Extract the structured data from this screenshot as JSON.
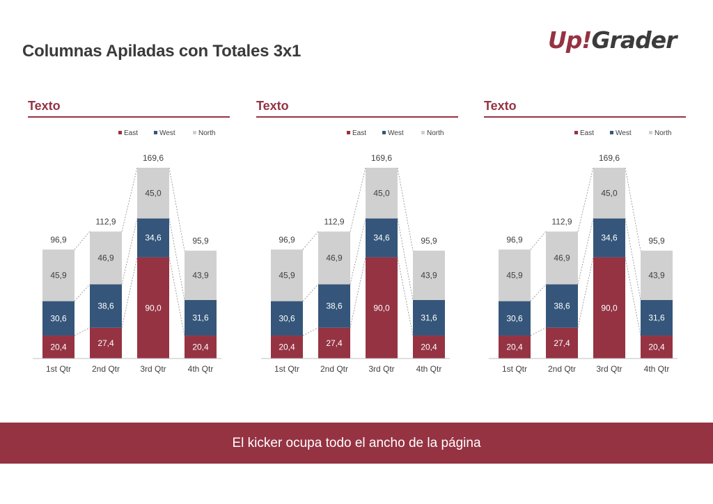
{
  "page": {
    "title": "Columnas Apiladas con Totales 3x1",
    "logo": {
      "part1": "Up!",
      "part2": "Grader"
    },
    "kicker": "El kicker ocupa todo el ancho de la página"
  },
  "colors": {
    "accent": "#953343",
    "east": "#953343",
    "west": "#35567a",
    "north": "#d0d0d0",
    "label_light": "#ffffff",
    "label_dark": "#404040"
  },
  "chart_data": [
    {
      "type": "bar",
      "stacked": true,
      "title": "Texto",
      "categories": [
        "1st Qtr",
        "2nd Qtr",
        "3rd Qtr",
        "4th Qtr"
      ],
      "series": [
        {
          "name": "East",
          "values": [
            20.4,
            27.4,
            90.0,
            20.4
          ]
        },
        {
          "name": "West",
          "values": [
            30.6,
            38.6,
            34.6,
            31.6
          ]
        },
        {
          "name": "North",
          "values": [
            45.9,
            46.9,
            45.0,
            43.9
          ]
        }
      ],
      "totals": [
        96.9,
        112.9,
        169.6,
        95.9
      ],
      "ylim": [
        0,
        169.6
      ],
      "legend": "top-right",
      "grid": false
    },
    {
      "type": "bar",
      "stacked": true,
      "title": "Texto",
      "categories": [
        "1st Qtr",
        "2nd Qtr",
        "3rd Qtr",
        "4th Qtr"
      ],
      "series": [
        {
          "name": "East",
          "values": [
            20.4,
            27.4,
            90.0,
            20.4
          ]
        },
        {
          "name": "West",
          "values": [
            30.6,
            38.6,
            34.6,
            31.6
          ]
        },
        {
          "name": "North",
          "values": [
            45.9,
            46.9,
            45.0,
            43.9
          ]
        }
      ],
      "totals": [
        96.9,
        112.9,
        169.6,
        95.9
      ],
      "ylim": [
        0,
        169.6
      ],
      "legend": "top-right",
      "grid": false
    },
    {
      "type": "bar",
      "stacked": true,
      "title": "Texto",
      "categories": [
        "1st Qtr",
        "2nd Qtr",
        "3rd Qtr",
        "4th Qtr"
      ],
      "series": [
        {
          "name": "East",
          "values": [
            20.4,
            27.4,
            90.0,
            20.4
          ]
        },
        {
          "name": "West",
          "values": [
            30.6,
            38.6,
            34.6,
            31.6
          ]
        },
        {
          "name": "North",
          "values": [
            45.9,
            46.9,
            45.0,
            43.9
          ]
        }
      ],
      "totals": [
        96.9,
        112.9,
        169.6,
        95.9
      ],
      "ylim": [
        0,
        169.6
      ],
      "legend": "top-right",
      "grid": false
    }
  ]
}
